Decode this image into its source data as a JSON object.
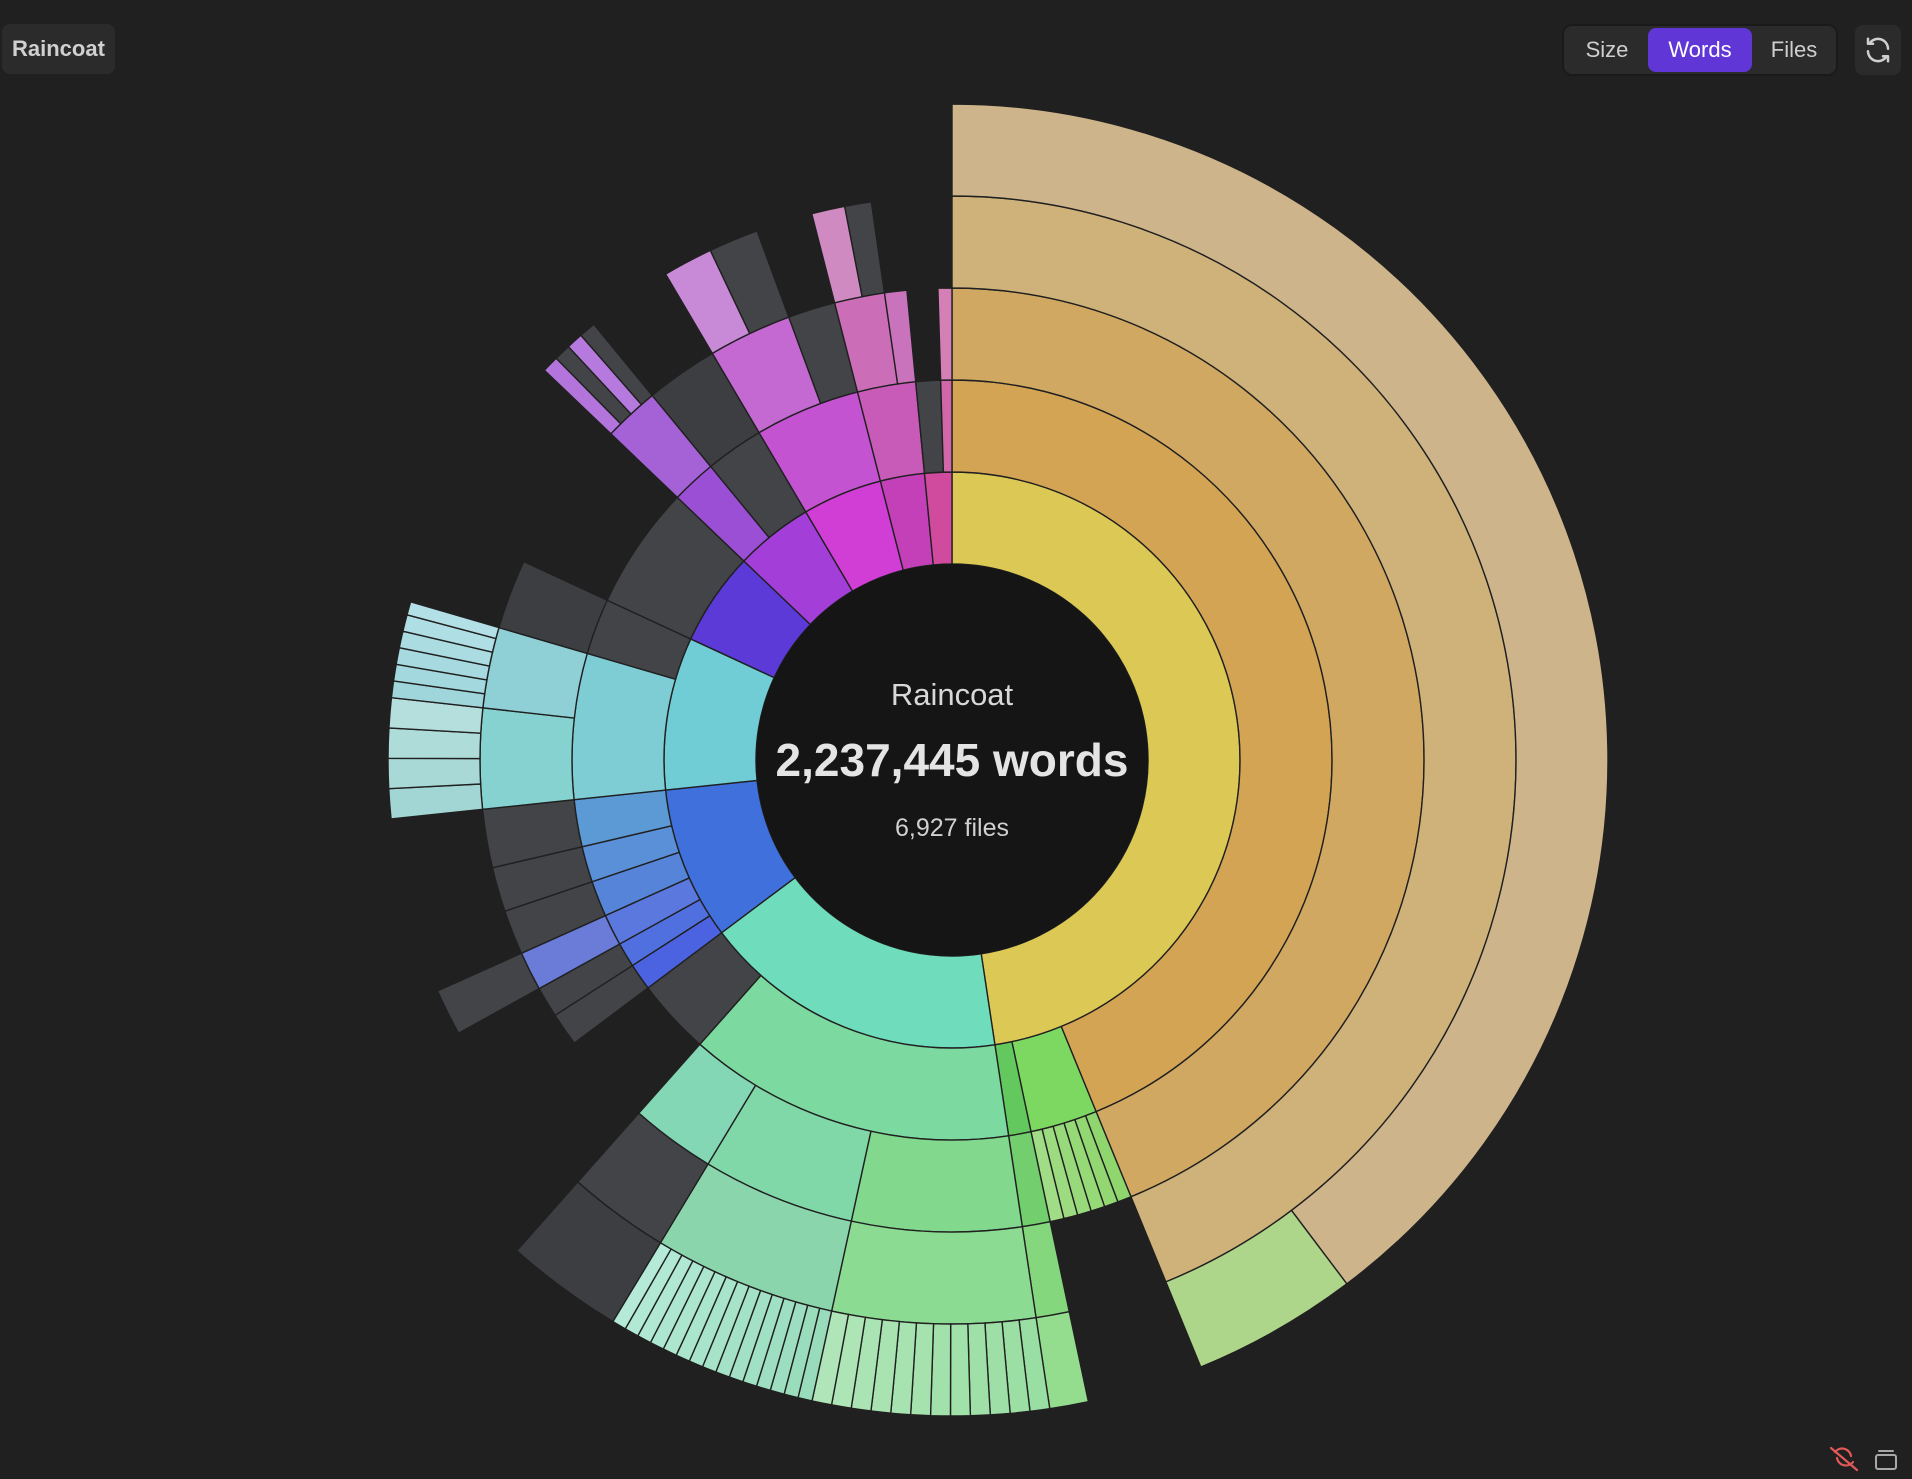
{
  "breadcrumb": {
    "root_label": "Raincoat"
  },
  "metric_toggle": {
    "options": [
      {
        "label": "Size",
        "active": false
      },
      {
        "label": "Words",
        "active": true
      },
      {
        "label": "Files",
        "active": false
      }
    ]
  },
  "icons": {
    "refresh": "refresh-icon",
    "sync_off": "sync-off-icon",
    "stack": "stack-icon"
  },
  "colors": {
    "background": "#202020",
    "panel": "#2b2b2b",
    "accent": "#6136d6",
    "center": "#151515",
    "other": "#434447",
    "sync_off": "#e05858"
  },
  "center": {
    "title": "Raincoat",
    "words": "2,237,445 words",
    "files": "6,927 files"
  },
  "chart_data": {
    "type": "sunburst",
    "metric": "words",
    "total_words": 2237445,
    "total_files": 6927,
    "children": [
      {
        "value": 50.0,
        "color": "#dcc855",
        "children": [
          {
            "value": 46.0,
            "color": "#d4a455",
            "children": [
              {
                "value": 46.0,
                "color": "#d1a862",
                "children": [
                  {
                    "value": 46.0,
                    "color": "#cfb27a",
                    "children": [
                      {
                        "value": 40.8,
                        "color": "#ceb48b"
                      },
                      {
                        "value": 4.2,
                        "color": "#aed68a"
                      }
                    ]
                  }
                ]
              }
            ]
          },
          {
            "value": 3.0,
            "color": "#7dd862",
            "children": [
              {
                "value": 0.5,
                "color": "#8ed66d"
              },
              {
                "value": 0.5,
                "color": "#92d772"
              },
              {
                "value": 0.5,
                "color": "#96d977"
              },
              {
                "value": 0.5,
                "color": "#98da7b"
              },
              {
                "value": 0.5,
                "color": "#9cdb80"
              },
              {
                "value": 0.5,
                "color": "#a0dd86"
              }
            ]
          },
          {
            "value": 1.0,
            "color": "#63c95e",
            "children": [
              {
                "value": 1.0,
                "color": "#73cf6e",
                "children": [
                  {
                    "value": 1.0,
                    "color": "#85d77e",
                    "children": [
                      {
                        "value": 1.0,
                        "color": "#94dc8e"
                      }
                    ]
                  }
                ]
              }
            ]
          }
        ]
      },
      {
        "value": 18.0,
        "color": "#6fdcbb",
        "children": [
          {
            "value": 13.0,
            "color": "#7cdaa1",
            "children": [
              {
                "value": 5.0,
                "color": "#82d98e",
                "children": [
                  {
                    "value": 4.2,
                    "color": "#8bdb93",
                    "children": [
                      {
                        "value": 0.35,
                        "color": "#99dea2"
                      },
                      {
                        "value": 0.35,
                        "color": "#9bdfa4"
                      },
                      {
                        "value": 0.35,
                        "color": "#9ddfa6"
                      },
                      {
                        "value": 0.35,
                        "color": "#9fe0a8"
                      },
                      {
                        "value": 0.35,
                        "color": "#a1e1aa"
                      },
                      {
                        "value": 0.35,
                        "color": "#a3e1ac"
                      },
                      {
                        "value": 0.35,
                        "color": "#a5e2ae"
                      },
                      {
                        "value": 0.35,
                        "color": "#a7e3b0"
                      },
                      {
                        "value": 0.35,
                        "color": "#a9e3b2"
                      },
                      {
                        "value": 0.35,
                        "color": "#abe4b4"
                      },
                      {
                        "value": 0.35,
                        "color": "#ade5b6"
                      },
                      {
                        "value": 0.35,
                        "color": "#afe5b8"
                      }
                    ]
                  }
                ]
              },
              {
                "value": 4.5,
                "color": "#80d7a8",
                "children": [
                  {
                    "value": 4.5,
                    "color": "#8bd5ad",
                    "children": [
                      {
                        "value": 0.3,
                        "color": "#98dcbb"
                      },
                      {
                        "value": 0.3,
                        "color": "#9addbd"
                      },
                      {
                        "value": 0.3,
                        "color": "#9cdebf"
                      },
                      {
                        "value": 0.3,
                        "color": "#9edfc1"
                      },
                      {
                        "value": 0.3,
                        "color": "#a0e0c3"
                      },
                      {
                        "value": 0.3,
                        "color": "#a2e1c5"
                      },
                      {
                        "value": 0.3,
                        "color": "#a4e2c7"
                      },
                      {
                        "value": 0.3,
                        "color": "#a6e3c9"
                      },
                      {
                        "value": 0.3,
                        "color": "#a8e4cb"
                      },
                      {
                        "value": 0.3,
                        "color": "#aae5cd"
                      },
                      {
                        "value": 0.3,
                        "color": "#ace6cf"
                      },
                      {
                        "value": 0.3,
                        "color": "#aee7d1"
                      },
                      {
                        "value": 0.3,
                        "color": "#b0e8d3"
                      },
                      {
                        "value": 0.3,
                        "color": "#b2e9d5"
                      },
                      {
                        "value": 0.3,
                        "color": "#b4ead7"
                      }
                    ]
                  }
                ]
              },
              {
                "value": 2.5,
                "color": "#84d7b4",
                "children": [
                  {
                    "value": 2.5,
                    "color": "#434447",
                    "children": [
                      {
                        "value": 2.5,
                        "color": "#3d3e41"
                      }
                    ]
                  }
                ]
              }
            ]
          },
          {
            "value": 3.0,
            "color": "#434447"
          }
        ]
      },
      {
        "value": 9.0,
        "color": "#4070dc",
        "children": [
          {
            "value": 1.2,
            "color": "#4b63e0",
            "children": [
              {
                "value": 1.2,
                "color": "#434447"
              }
            ]
          },
          {
            "value": 1.1,
            "color": "#5070e0",
            "children": [
              {
                "value": 1.1,
                "color": "#434447"
              }
            ]
          },
          {
            "value": 1.4,
            "color": "#5a78dd",
            "children": [
              {
                "value": 1.4,
                "color": "#6a7bd8",
                "children": [
                  {
                    "value": 1.4,
                    "color": "#434447"
                  }
                ]
              }
            ]
          },
          {
            "value": 1.6,
            "color": "#5584d8",
            "children": [
              {
                "value": 1.6,
                "color": "#434447"
              }
            ]
          },
          {
            "value": 1.6,
            "color": "#5a90d8",
            "children": [
              {
                "value": 1.6,
                "color": "#434447"
              }
            ]
          },
          {
            "value": 2.1,
            "color": "#5c9ad6",
            "children": [
              {
                "value": 2.1,
                "color": "#434447"
              }
            ]
          }
        ]
      },
      {
        "value": 9.0,
        "color": "#70cdd6",
        "children": [
          {
            "value": 6.5,
            "color": "#7ecdd4",
            "children": [
              {
                "value": 3.6,
                "color": "#86d2d0",
                "children": [
                  {
                    "value": 0.9,
                    "color": "#a2d6d4"
                  },
                  {
                    "value": 0.9,
                    "color": "#a8d9d6"
                  },
                  {
                    "value": 0.9,
                    "color": "#aedcd9"
                  },
                  {
                    "value": 0.9,
                    "color": "#b4dfdc"
                  }
                ]
              },
              {
                "value": 2.9,
                "color": "#8fcfd6",
                "children": [
                  {
                    "value": 0.5,
                    "color": "#9fd6dc"
                  },
                  {
                    "value": 0.5,
                    "color": "#a3d8de"
                  },
                  {
                    "value": 0.5,
                    "color": "#a7dae0"
                  },
                  {
                    "value": 0.5,
                    "color": "#abdce2"
                  },
                  {
                    "value": 0.5,
                    "color": "#afdee4"
                  },
                  {
                    "value": 0.4,
                    "color": "#b3e0e6"
                  }
                ]
              }
            ]
          },
          {
            "value": 2.5,
            "color": "#434447",
            "children": [
              {
                "value": 2.5,
                "color": "#3d3e41"
              }
            ]
          }
        ]
      },
      {
        "value": 5.5,
        "color": "#5b3ad8",
        "children": [
          {
            "value": 5.5,
            "color": "#434447"
          }
        ]
      },
      {
        "value": 4.6,
        "color": "#a33ed8",
        "children": [
          {
            "value": 2.0,
            "color": "#9b4fd4",
            "children": [
              {
                "value": 2.0,
                "color": "#a562d6",
                "children": [
                  {
                    "value": 0.5,
                    "color": "#b374dc"
                  },
                  {
                    "value": 0.5,
                    "color": "#434447"
                  },
                  {
                    "value": 0.5,
                    "color": "#b67ade"
                  },
                  {
                    "value": 0.5,
                    "color": "#434447"
                  }
                ]
              }
            ]
          },
          {
            "value": 2.6,
            "color": "#434447",
            "children": [
              {
                "value": 2.6,
                "color": "#3d3e41"
              }
            ]
          }
        ]
      },
      {
        "value": 4.7,
        "color": "#d03ed6",
        "children": [
          {
            "value": 4.7,
            "color": "#c453d2",
            "children": [
              {
                "value": 3.0,
                "color": "#c468d2",
                "children": [
                  {
                    "value": 1.5,
                    "color": "#c88ad6"
                  },
                  {
                    "value": 1.5,
                    "color": "#434447"
                  }
                ]
              },
              {
                "value": 1.7,
                "color": "#434447"
              }
            ]
          }
        ]
      },
      {
        "value": 2.6,
        "color": "#c340b8",
        "children": [
          {
            "value": 2.6,
            "color": "#c85ab8",
            "children": [
              {
                "value": 1.8,
                "color": "#cc6db8",
                "children": [
                  {
                    "value": 1.0,
                    "color": "#d08ac2"
                  },
                  {
                    "value": 0.8,
                    "color": "#434447"
                  }
                ]
              },
              {
                "value": 0.8,
                "color": "#c873bb"
              }
            ]
          }
        ]
      },
      {
        "value": 1.6,
        "color": "#d04a9e",
        "children": [
          {
            "value": 1.1,
            "color": "#434447"
          },
          {
            "value": 0.5,
            "color": "#d067a8",
            "children": [
              {
                "value": 0.5,
                "color": "#d47fb5"
              }
            ]
          }
        ]
      }
    ]
  }
}
